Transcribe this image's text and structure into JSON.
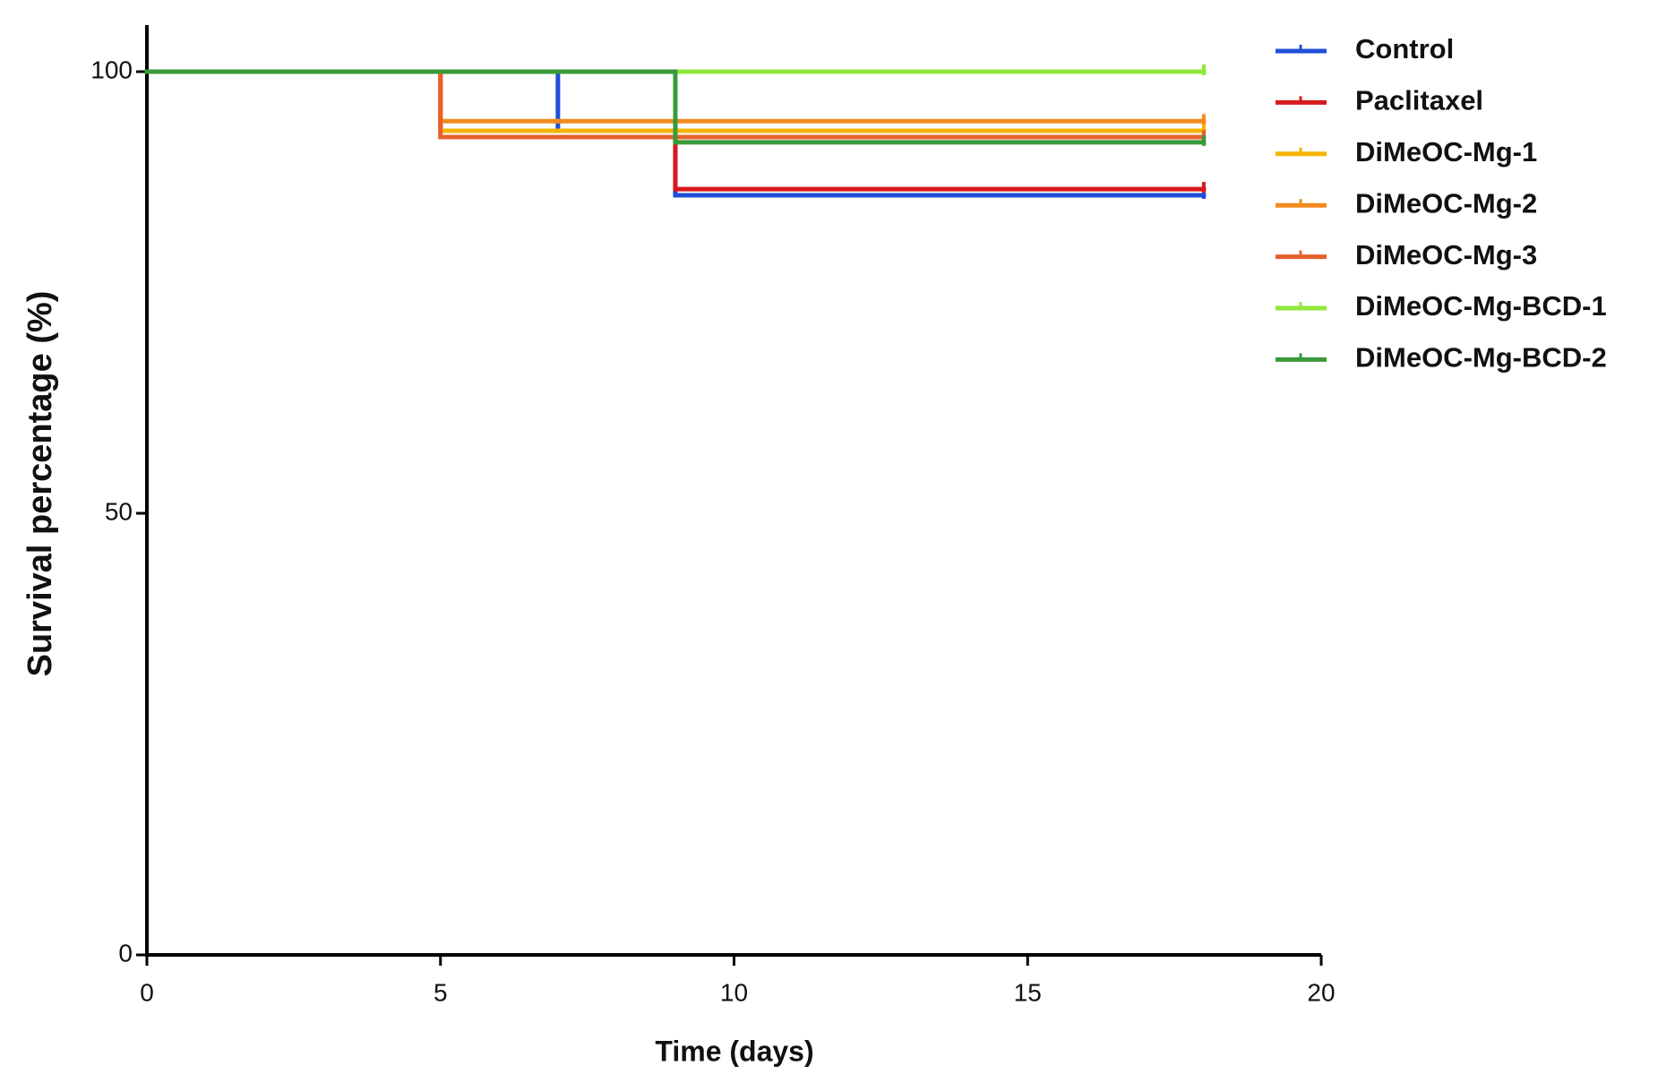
{
  "chart_data": {
    "type": "step",
    "xlabel": "Time (days)",
    "ylabel": "Survival percentage (%)",
    "x": [
      0,
      5,
      7,
      9,
      18
    ],
    "series": [
      {
        "name": "Control",
        "color": "#1f4fd8",
        "values": [
          100,
          100,
          93.3,
          86,
          86
        ]
      },
      {
        "name": "Paclitaxel",
        "color": "#d7191c",
        "values": [
          100,
          93.3,
          93.3,
          86.7,
          86.7
        ]
      },
      {
        "name": "DiMeOC-Mg-1",
        "color": "#f4b400",
        "values": [
          100,
          93.3,
          93.3,
          93.3,
          93.3
        ]
      },
      {
        "name": "DiMeOC-Mg-2",
        "color": "#f28a1e",
        "values": [
          100,
          94.4,
          94.4,
          94.4,
          94.4
        ]
      },
      {
        "name": "DiMeOC-Mg-3",
        "color": "#e8602c",
        "values": [
          100,
          92.6,
          92.6,
          92.6,
          92.6
        ]
      },
      {
        "name": "DiMeOC-Mg-BCD-1",
        "color": "#8fe83a",
        "values": [
          100,
          100,
          100,
          100,
          100
        ]
      },
      {
        "name": "DiMeOC-Mg-BCD-2",
        "color": "#3a9a3a",
        "values": [
          100,
          100,
          100,
          92,
          92
        ]
      }
    ],
    "xlim": [
      0,
      20
    ],
    "xticks": [
      0,
      5,
      10,
      15,
      20
    ],
    "ylim": [
      0,
      100
    ],
    "yticks": [
      0,
      50,
      100
    ],
    "legend": "right"
  }
}
